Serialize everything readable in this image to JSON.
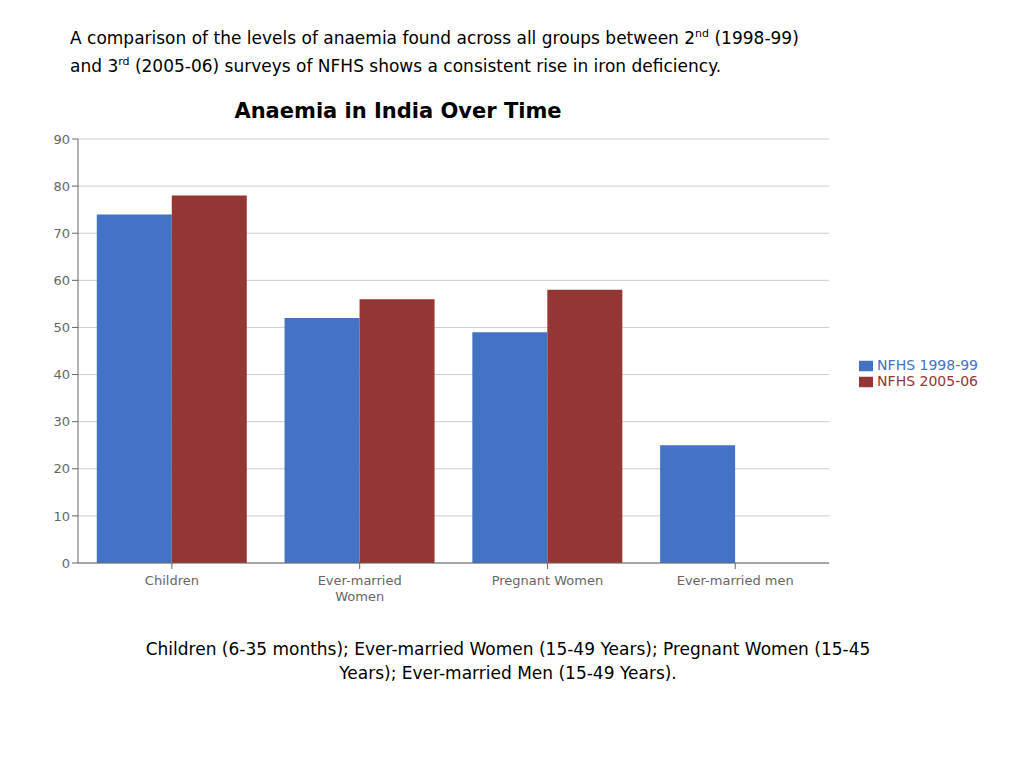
{
  "chart_data": {
    "type": "bar",
    "title": "Anaemia in India Over Time",
    "subtitle": [
      [
        "A comparison of the levels of anaemia found across all groups between 2",
        "nd",
        " (1998-99)"
      ],
      [
        "and 3",
        "rd",
        " (2005-06) surveys of NFHS shows a consistent rise in iron deficiency."
      ]
    ],
    "annotations": [
      "Children (6-35 months); Ever-married Women (15-49 Years); Pregnant Women (15-45\nYears); Ever-married Men (15-49 Years)."
    ],
    "categories": [
      "Children",
      "Ever-married\nWomen",
      "Pregnant Women",
      "Ever-married men"
    ],
    "series": [
      {
        "name": "NFHS 1998-99",
        "color": "#4472C4",
        "values": [
          74,
          52,
          49,
          25
        ]
      },
      {
        "name": "NFHS 2005-06",
        "color": "#943634",
        "values": [
          78,
          56,
          58,
          0
        ]
      }
    ],
    "ylim": [
      0,
      90
    ],
    "yticks": [
      0,
      10,
      20,
      30,
      40,
      50,
      60,
      70,
      80,
      90
    ],
    "grid": true,
    "legend": "right"
  }
}
